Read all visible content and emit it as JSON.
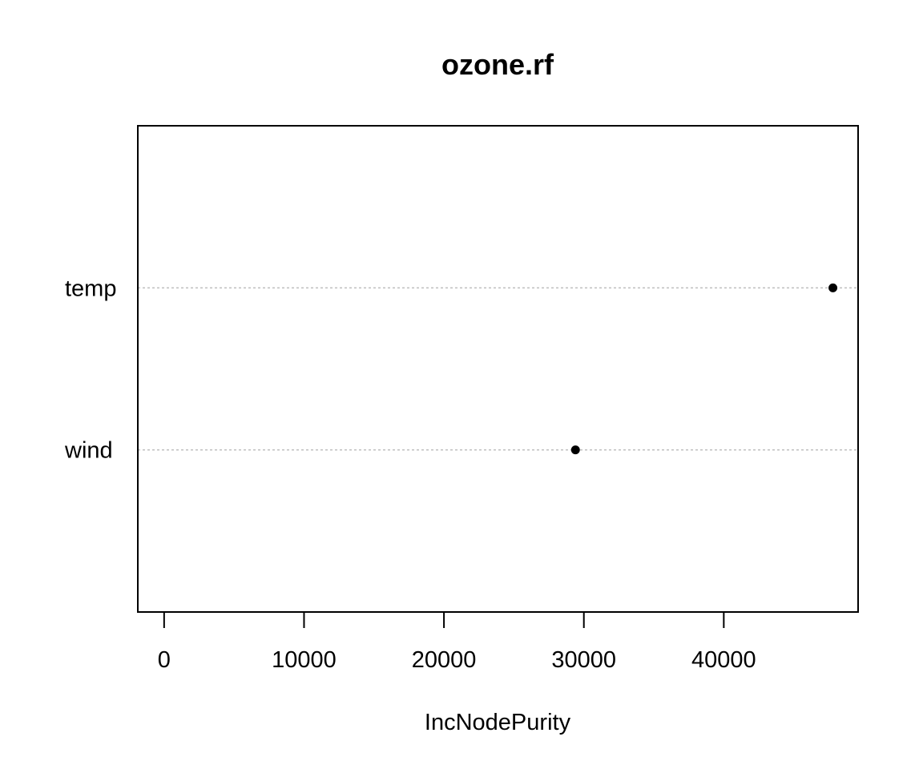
{
  "chart_data": {
    "type": "scatter",
    "title": "ozone.rf",
    "xlabel": "IncNodePurity",
    "ylabel": "",
    "xlim": [
      -1880,
      49600
    ],
    "x_ticks": [
      0,
      10000,
      20000,
      30000,
      40000
    ],
    "categories": [
      "wind",
      "temp"
    ],
    "values": [
      29400,
      47800
    ],
    "grid": "dotted horizontal guide lines per category",
    "point_color": "#000000",
    "guide_color": "#bebebe"
  }
}
